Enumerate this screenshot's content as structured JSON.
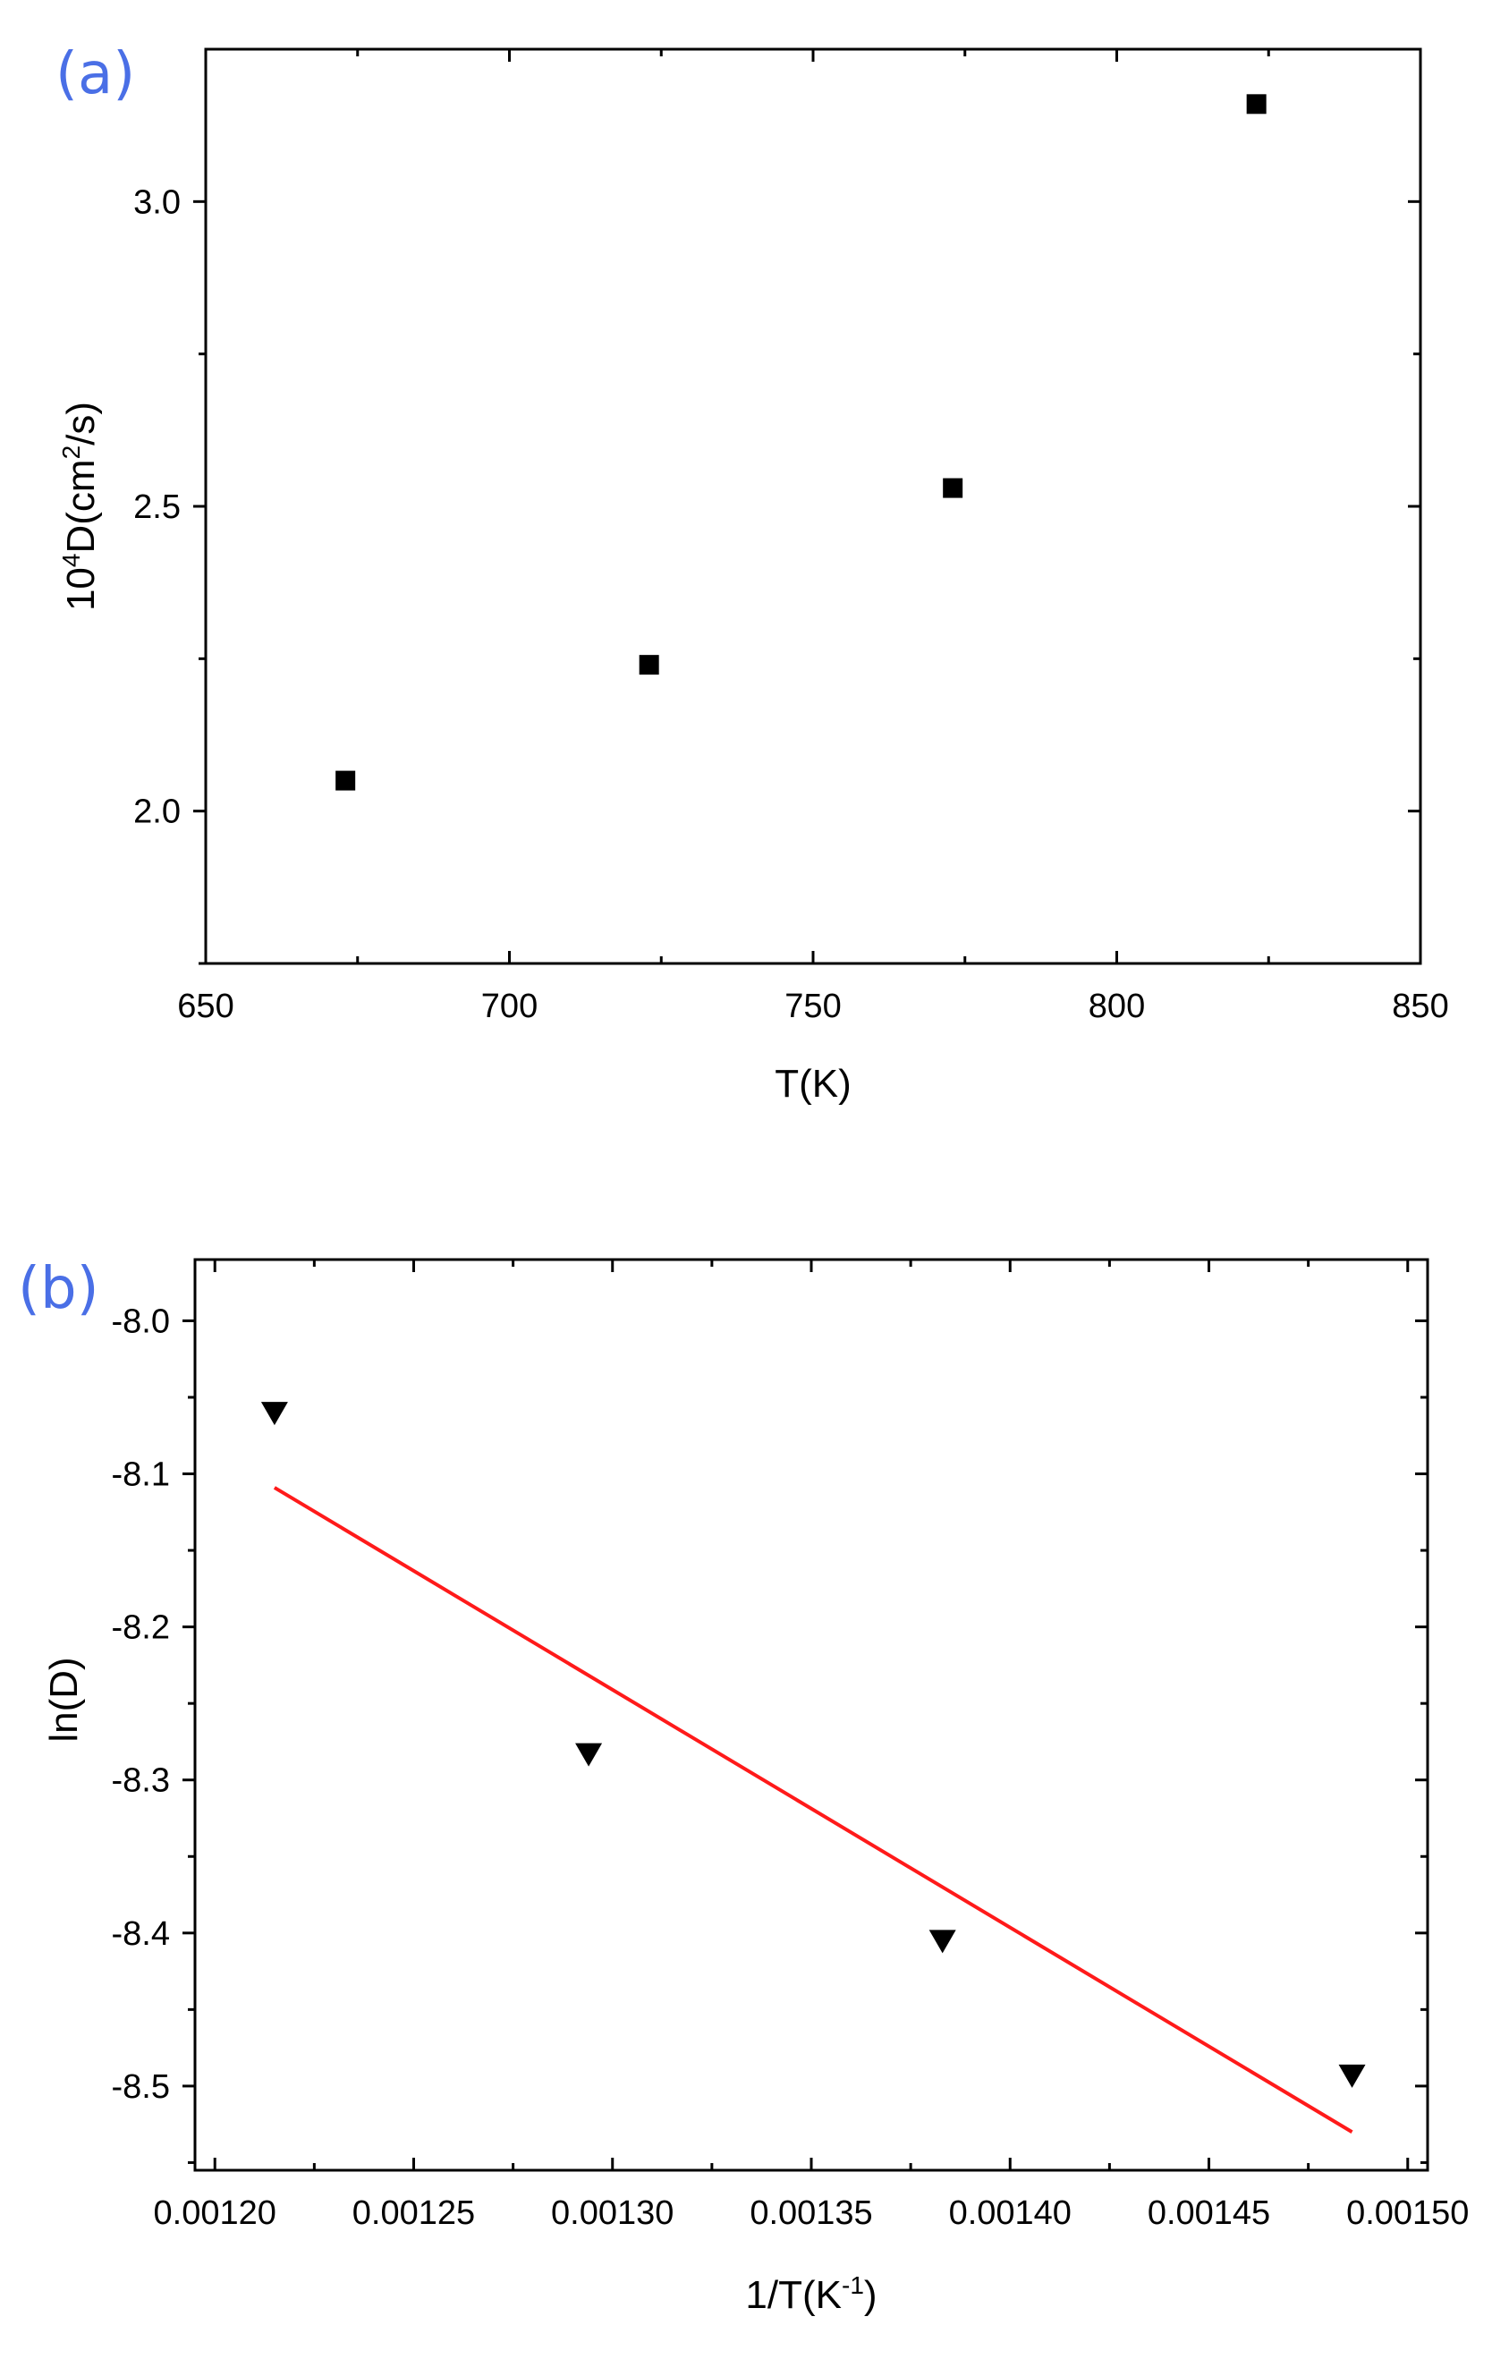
{
  "colors": {
    "panel_label": "#4a6fe6",
    "axis": "#000000",
    "marker": "#000000",
    "fit_line": "#ff1a1a"
  },
  "chart_data": [
    {
      "type": "scatter",
      "panel_label": "(a)",
      "title": "",
      "xlabel": "T(K)",
      "ylabel_parts": {
        "base": "10",
        "sup1": "4",
        "mid": "D(cm",
        "sup2": "2",
        "end": "/s)"
      },
      "xlim": [
        650,
        850
      ],
      "ylim": [
        1.75,
        3.25
      ],
      "xticks": [
        650,
        700,
        750,
        800,
        850
      ],
      "xtick_labels": [
        "650",
        "700",
        "750",
        "800",
        "850"
      ],
      "xminor": [
        675,
        725,
        775,
        825
      ],
      "yticks": [
        2.0,
        2.5,
        3.0
      ],
      "ytick_labels": [
        "2.0",
        "2.5",
        "3.0"
      ],
      "yminor": [
        1.75,
        2.25,
        2.75
      ],
      "grid": false,
      "marker": "square",
      "series": [
        {
          "x": [
            673,
            723,
            773,
            823
          ],
          "y": [
            2.05,
            2.24,
            2.53,
            3.16
          ]
        }
      ]
    },
    {
      "type": "scatter",
      "panel_label": "(b)",
      "title": "",
      "xlabel_parts": {
        "base": "1/T(K",
        "sup": "-1",
        "end": ")"
      },
      "ylabel": "ln(D)",
      "xlim": [
        0.001195,
        0.001505
      ],
      "ylim": [
        -8.555,
        -7.96
      ],
      "xticks": [
        0.0012,
        0.00125,
        0.0013,
        0.00135,
        0.0014,
        0.00145,
        0.0015
      ],
      "xtick_labels": [
        "0.00120",
        "0.00125",
        "0.00130",
        "0.00135",
        "0.00140",
        "0.00145",
        "0.00150"
      ],
      "xminor": [
        0.001225,
        0.001275,
        0.001325,
        0.001375,
        0.001425,
        0.001475
      ],
      "yticks": [
        -8.5,
        -8.4,
        -8.3,
        -8.2,
        -8.1,
        -8.0
      ],
      "ytick_labels": [
        "-8.5",
        "-8.4",
        "-8.3",
        "-8.2",
        "-8.1",
        "-8.0"
      ],
      "yminor": [
        -8.55,
        -8.45,
        -8.35,
        -8.25,
        -8.15,
        -8.05
      ],
      "grid": false,
      "marker": "triangle-down",
      "series": [
        {
          "x": [
            0.001215,
            0.001294,
            0.001383,
            0.001486
          ],
          "y": [
            -8.06,
            -8.283,
            -8.405,
            -8.493
          ]
        }
      ],
      "fit_line": {
        "x": [
          0.001215,
          0.001486
        ],
        "y": [
          -8.109,
          -8.53
        ]
      }
    }
  ]
}
